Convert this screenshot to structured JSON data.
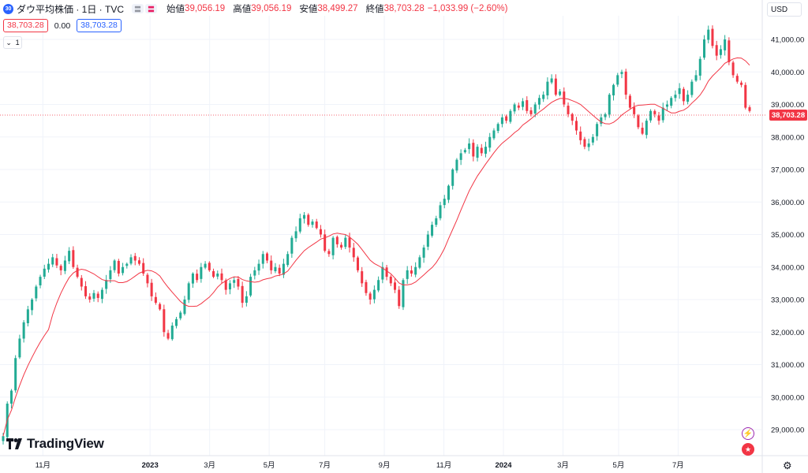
{
  "header": {
    "symbol_badge": "30",
    "title": "ダウ平均株価 · 1日 · TVC",
    "pill_a": "〓",
    "pill_b": "〓",
    "open_label": "始値",
    "open_value": "39,056.19",
    "high_label": "高値",
    "high_value": "39,056.19",
    "low_label": "安値",
    "low_value": "38,499.27",
    "close_label": "終値",
    "close_value": "38,703.28",
    "change": "−1,033.99 (−2.60%)",
    "bid": "38,703.28",
    "spread": "0.00",
    "ask": "38,703.28",
    "collapse_count": "1"
  },
  "currency": "USD",
  "last_price_label": "38,703.28",
  "branding": {
    "logo_text": "TradingView"
  },
  "icons": {
    "lightning": "lightning-icon",
    "flag": "us-flag-icon",
    "gear": "gear-icon",
    "collapse": "chevron-down-icon"
  },
  "colors": {
    "up": "#22ab94",
    "down": "#f23645",
    "ma": "#f23645",
    "grid": "#f0f3fa"
  },
  "chart_data": {
    "type": "candlestick",
    "title": "",
    "xlabel": "",
    "ylabel": "",
    "ylim": [
      28500,
      41500
    ],
    "y_ticks": [
      "41,000.00",
      "40,000.00",
      "39,000.00",
      "38,000.00",
      "37,000.00",
      "36,000.00",
      "35,000.00",
      "34,000.00",
      "33,000.00",
      "32,000.00",
      "31,000.00",
      "30,000.00",
      "29,000.00"
    ],
    "y_tick_values": [
      41000,
      40000,
      39000,
      38000,
      37000,
      36000,
      35000,
      34000,
      33000,
      32000,
      31000,
      30000,
      29000
    ],
    "x_ticks": [
      "11月",
      "2023",
      "3月",
      "5月",
      "7月",
      "9月",
      "11月",
      "2024",
      "3月",
      "5月",
      "7月"
    ],
    "x_tick_positions": [
      10,
      37,
      52,
      67,
      81,
      96,
      111,
      126,
      141,
      155,
      170
    ],
    "x_range": [
      0,
      188
    ],
    "series": [
      {
        "type": "close_path",
        "values": [
          28800,
          29800,
          30200,
          31200,
          31800,
          32300,
          32700,
          33000,
          33400,
          33700,
          33950,
          34100,
          34300,
          34050,
          33900,
          34200,
          34500,
          34000,
          33700,
          33400,
          33100,
          33000,
          33200,
          33050,
          33300,
          33600,
          33900,
          34200,
          33800,
          34000,
          34100,
          34300,
          34200,
          34100,
          33800,
          33500,
          33100,
          32900,
          32700,
          32000,
          31800,
          32200,
          32400,
          32600,
          33000,
          33500,
          33800,
          33600,
          34000,
          34100,
          33900,
          33700,
          33800,
          33600,
          33300,
          33500,
          33600,
          33400,
          32900,
          33100,
          33700,
          33900,
          34100,
          34400,
          34200,
          33900,
          34000,
          33800,
          34100,
          34400,
          34900,
          35100,
          35500,
          35600,
          35300,
          35400,
          35200,
          35000,
          34500,
          34400,
          34900,
          34700,
          34600,
          34900,
          34600,
          34300,
          33900,
          33500,
          33200,
          33000,
          33300,
          33600,
          34000,
          33700,
          33500,
          33300,
          32800,
          33600,
          33900,
          33800,
          34000,
          34300,
          34600,
          35000,
          35300,
          35500,
          35900,
          36100,
          36500,
          37000,
          37300,
          37500,
          37600,
          37800,
          37400,
          37700,
          37500,
          37700,
          38000,
          38200,
          38400,
          38600,
          38500,
          38800,
          39000,
          38900,
          39100,
          38800,
          38700,
          39000,
          39200,
          39300,
          39700,
          39800,
          39300,
          39400,
          39000,
          38700,
          38500,
          38200,
          37900,
          37700,
          37800,
          38000,
          38400,
          38600,
          38700,
          39300,
          39600,
          39900,
          40000,
          39300,
          38900,
          38700,
          38300,
          38100,
          38500,
          38800,
          38700,
          38500,
          38900,
          39000,
          39200,
          39300,
          39500,
          39100,
          39300,
          39700,
          39900,
          40400,
          41000,
          41300,
          40800,
          40500,
          40700,
          41000,
          40300,
          39900,
          39700,
          39600,
          38900,
          38800
        ]
      },
      {
        "name": "",
        "type": "moving_average"
      }
    ]
  }
}
